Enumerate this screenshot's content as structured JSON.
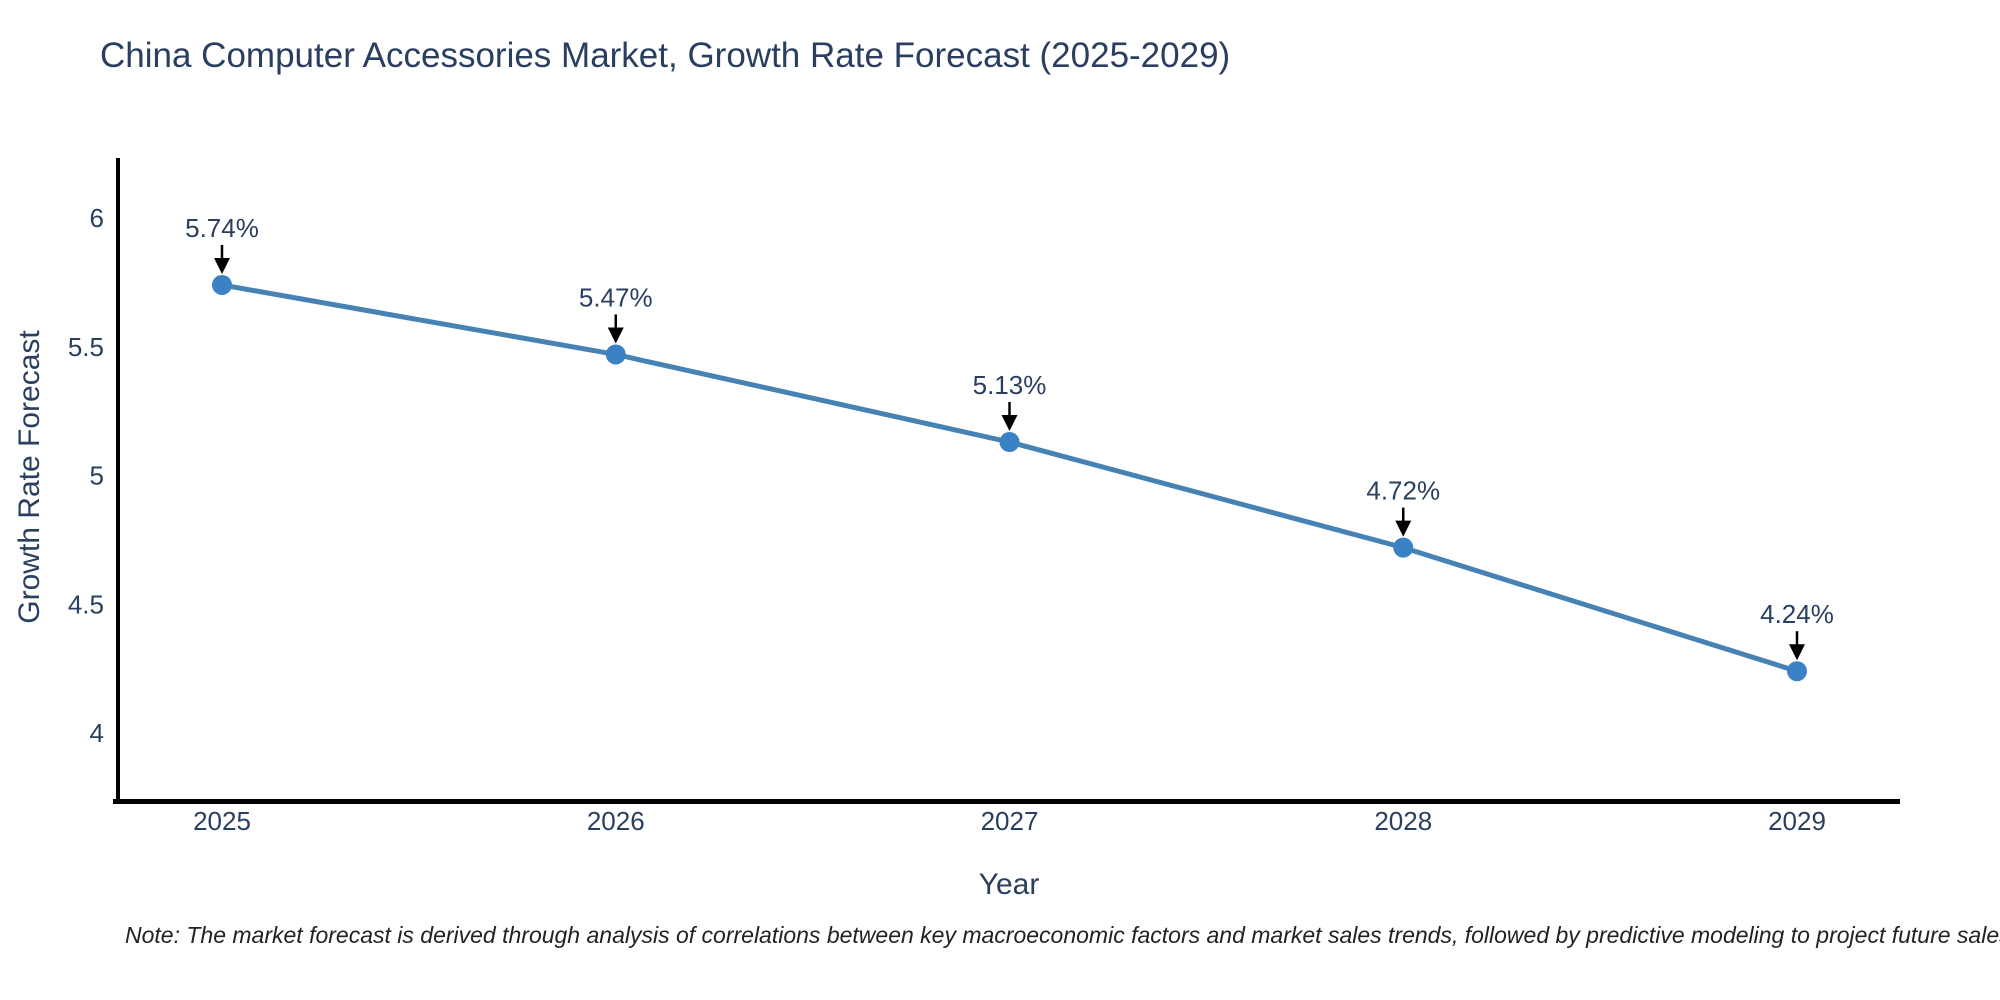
{
  "title": "China Computer Accessories Market, Growth Rate Forecast (2025-2029)",
  "note": "Note: The market forecast is derived through analysis of correlations between key macroeconomic factors and market sales trends, followed by predictive modeling to project future sales",
  "chart_data": {
    "type": "line",
    "title": "China Computer Accessories Market, Growth Rate Forecast (2025-2029)",
    "xlabel": "Year",
    "ylabel": "Growth Rate Forecast",
    "x": [
      2025,
      2026,
      2027,
      2028,
      2029
    ],
    "values": [
      5.74,
      5.47,
      5.13,
      4.72,
      4.24
    ],
    "point_labels": [
      "5.74%",
      "5.47%",
      "5.13%",
      "4.72%",
      "4.24%"
    ],
    "xticks": [
      "2025",
      "2026",
      "2027",
      "2028",
      "2029"
    ],
    "yticks": [
      6,
      5.5,
      5,
      4.5,
      4
    ],
    "ylim": [
      3.73,
      6.23
    ],
    "grid": false,
    "legend_position": "none",
    "annotation_style": "black-down-arrow",
    "colors": {
      "line": "#4682b4",
      "marker": "#3a82c4",
      "axis": "#000000",
      "text": "#2a3f5f",
      "arrow": "#000000",
      "note_text": "#222222",
      "background": "#ffffff"
    }
  }
}
